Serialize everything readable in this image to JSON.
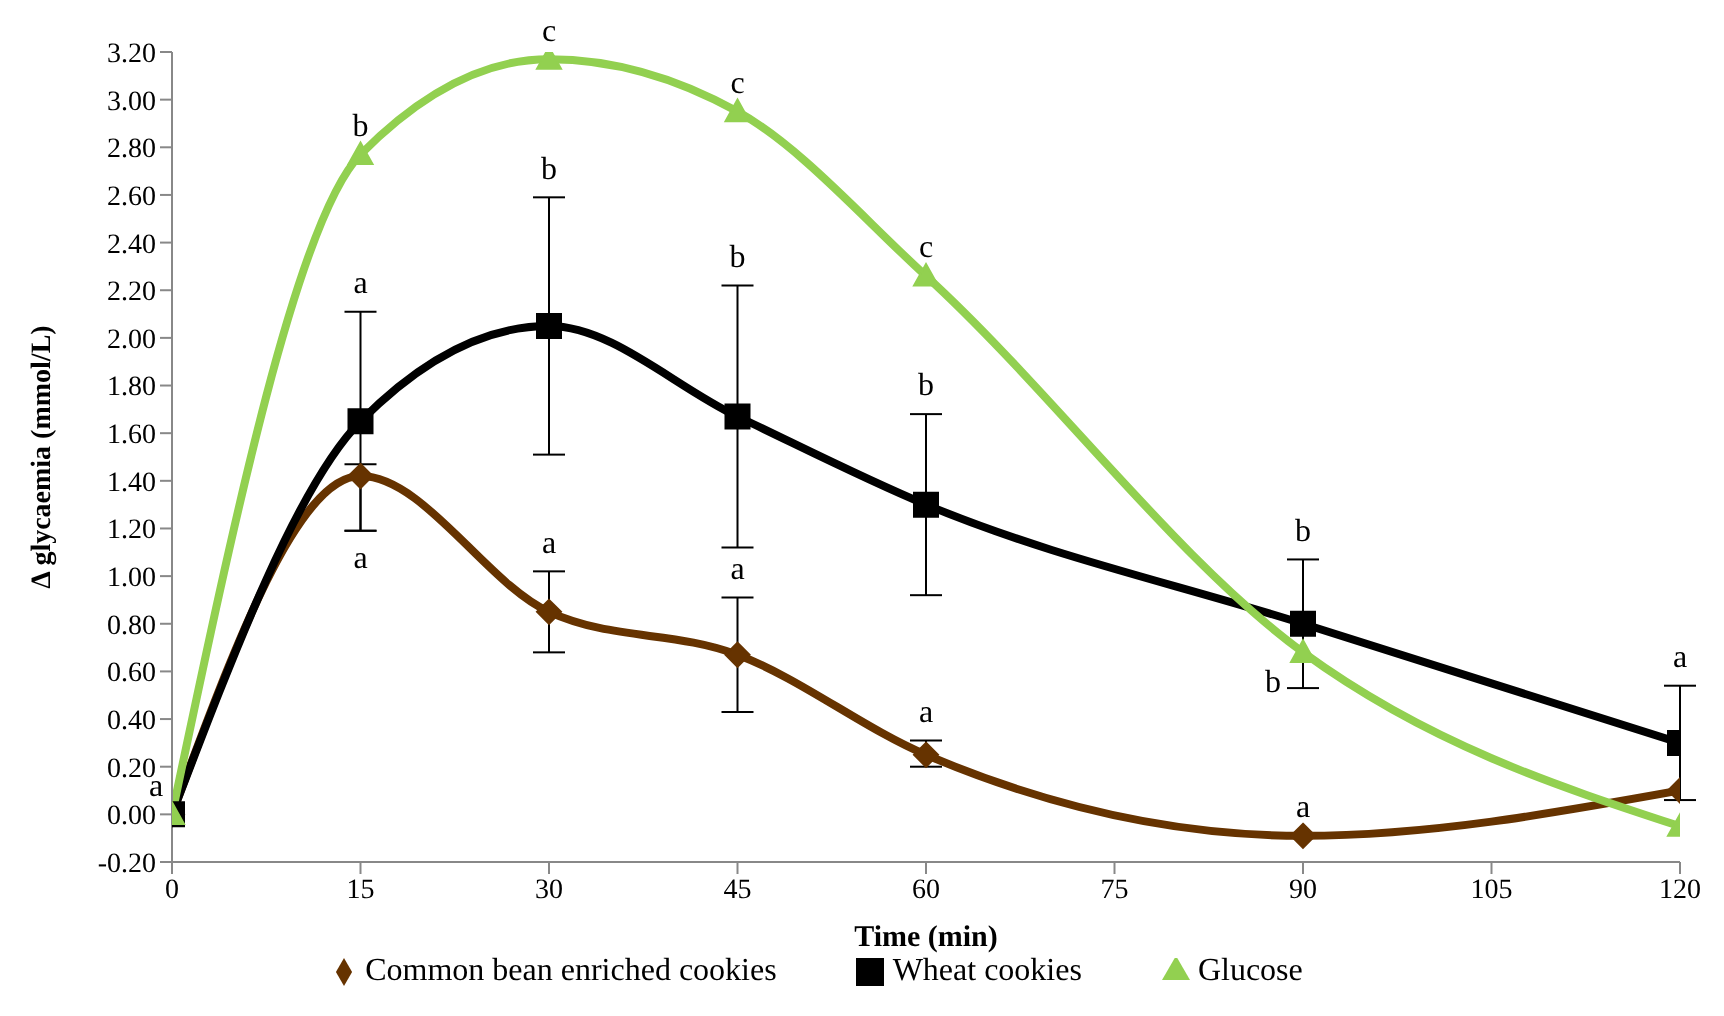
{
  "chart_data": {
    "type": "line",
    "xlabel": "Time (min)",
    "ylabel": "Δ glycaemia (mmol/L)",
    "x": [
      0,
      15,
      30,
      45,
      60,
      90,
      120
    ],
    "series": [
      {
        "name": "Common bean enriched cookies",
        "color": "#663300",
        "marker": "diamond",
        "values": [
          0,
          1.42,
          0.85,
          0.67,
          0.25,
          -0.09,
          0.1
        ],
        "errors": [
          null,
          [
            1.19,
            1.47
          ],
          [
            0.68,
            1.02
          ],
          [
            0.43,
            0.91
          ],
          [
            0.2,
            0.31
          ],
          null,
          null
        ]
      },
      {
        "name": "Wheat cookies",
        "color": "#000000",
        "marker": "square",
        "values": [
          0,
          1.65,
          2.05,
          1.67,
          1.3,
          0.8,
          0.3
        ],
        "errors": [
          null,
          0.46,
          0.54,
          0.55,
          0.38,
          0.27,
          0.24
        ]
      },
      {
        "name": "Glucose",
        "color": "#92d050",
        "marker": "triangle",
        "values": [
          0,
          2.77,
          3.17,
          2.95,
          2.26,
          0.68,
          -0.05
        ]
      }
    ],
    "xlim": [
      0,
      120
    ],
    "xticks": [
      0,
      15,
      30,
      45,
      60,
      75,
      90,
      105,
      120
    ],
    "ylim": [
      -0.2,
      3.2
    ],
    "yticks": [
      {
        "value": -0.2,
        "label": "-0.20"
      },
      {
        "value": 0,
        "label": "0.00"
      },
      {
        "value": 0.2,
        "label": "0.20"
      },
      {
        "value": 0.4,
        "label": "0.40"
      },
      {
        "value": 0.6,
        "label": "0.60"
      },
      {
        "value": 0.8,
        "label": "0.80"
      },
      {
        "value": 1,
        "label": "1.00"
      },
      {
        "value": 1.2,
        "label": "1.20"
      },
      {
        "value": 1.4,
        "label": "1.40"
      },
      {
        "value": 1.6,
        "label": "1.60"
      },
      {
        "value": 1.8,
        "label": "1.80"
      },
      {
        "value": 2,
        "label": "2.00"
      },
      {
        "value": 2.2,
        "label": "2.20"
      },
      {
        "value": 2.4,
        "label": "2.40"
      },
      {
        "value": 2.6,
        "label": "2.60"
      },
      {
        "value": 2.8,
        "label": "2.80"
      },
      {
        "value": 3,
        "label": "3.00"
      },
      {
        "value": 3.2,
        "label": "3.20"
      }
    ],
    "grid": false,
    "legend": "bottom",
    "line_style": "solid",
    "annotations": [
      {
        "text": "a",
        "x": 0,
        "y": 0
      },
      {
        "text": "b",
        "x": 15,
        "y": 2.77
      },
      {
        "text": "c",
        "x": 30,
        "y": 3.17
      },
      {
        "text": "c",
        "x": 45,
        "y": 2.95
      },
      {
        "text": "c",
        "x": 60,
        "y": 2.26
      },
      {
        "text": "b",
        "x": 90,
        "y": 0.68
      },
      {
        "text": "a",
        "x": 15,
        "y": 2.11
      },
      {
        "text": "b",
        "x": 30,
        "y": 2.59
      },
      {
        "text": "b",
        "x": 45,
        "y": 2.22
      },
      {
        "text": "b",
        "x": 60,
        "y": 1.68
      },
      {
        "text": "b",
        "x": 90,
        "y": 1.07
      },
      {
        "text": "a",
        "x": 120,
        "y": 0.54
      },
      {
        "text": "a",
        "x": 15,
        "y": 1.19
      },
      {
        "text": "a",
        "x": 30,
        "y": 1.02
      },
      {
        "text": "a",
        "x": 45,
        "y": 0.91
      },
      {
        "text": "a",
        "x": 60,
        "y": 0.31
      },
      {
        "text": "a",
        "x": 90,
        "y": -0.09
      }
    ]
  }
}
